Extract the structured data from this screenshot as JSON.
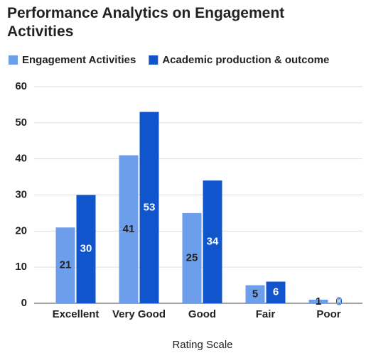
{
  "chart_data": {
    "type": "bar",
    "title": "Performance Analytics on Engagement Activities",
    "x_label": "Rating Scale",
    "categories": [
      "Excellent",
      "Very Good",
      "Good",
      "Fair",
      "Poor"
    ],
    "series": [
      {
        "name": "Engagement Activities",
        "color": "#6d9eeb",
        "values": [
          21,
          41,
          25,
          5,
          1
        ]
      },
      {
        "name": "Academic production & outcome",
        "color": "#1155cc",
        "values": [
          30,
          53,
          34,
          6,
          0
        ]
      }
    ],
    "ylim": [
      0,
      60
    ],
    "yticks": [
      0,
      10,
      20,
      30,
      40,
      50,
      60
    ],
    "grid": true,
    "legend": "top"
  }
}
